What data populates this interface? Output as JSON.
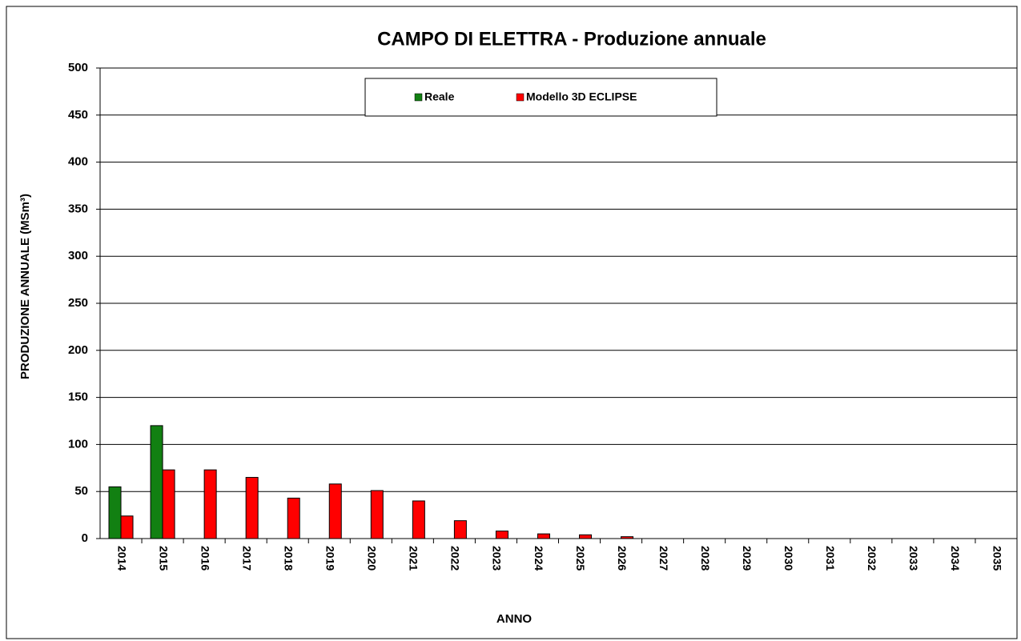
{
  "chart_data": {
    "type": "bar",
    "title": "CAMPO DI ELETTRA - Produzione annuale",
    "x_label": "ANNO",
    "y_label": "PRODUZIONE ANNUALE (MSm³)",
    "categories": [
      "2014",
      "2015",
      "2016",
      "2017",
      "2018",
      "2019",
      "2020",
      "2021",
      "2022",
      "2023",
      "2024",
      "2025",
      "2026",
      "2027",
      "2028",
      "2029",
      "2030",
      "2031",
      "2032",
      "2033",
      "2034",
      "2035"
    ],
    "series": [
      {
        "name": "Reale",
        "color": "#128012",
        "values": [
          55,
          120,
          null,
          null,
          null,
          null,
          null,
          null,
          null,
          null,
          null,
          null,
          null,
          null,
          null,
          null,
          null,
          null,
          null,
          null,
          null,
          null
        ]
      },
      {
        "name": "Modello 3D ECLIPSE",
        "color": "#ff0000",
        "values": [
          24,
          73,
          73,
          65,
          43,
          58,
          51,
          40,
          19,
          8,
          5,
          4,
          2,
          null,
          null,
          null,
          null,
          null,
          null,
          null,
          null,
          null
        ]
      }
    ],
    "ylim": [
      0,
      500
    ],
    "yticks": [
      0,
      50,
      100,
      150,
      200,
      250,
      300,
      350,
      400,
      450,
      500
    ],
    "grid": true,
    "legend": "top"
  }
}
